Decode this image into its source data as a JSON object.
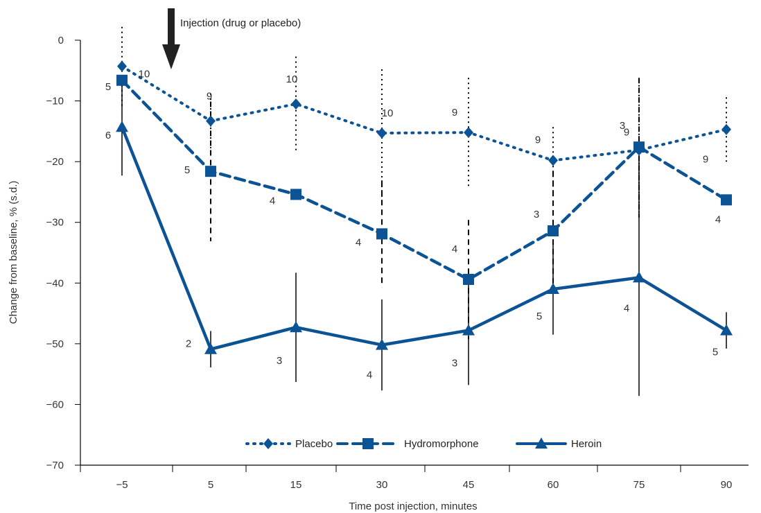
{
  "chart_data": {
    "type": "line",
    "xlabel": "Time post injection, minutes",
    "ylabel": "Change from baseline, % (s.d.)",
    "categories": [
      "−5",
      "5",
      "15",
      "30",
      "45",
      "60",
      "75",
      "90"
    ],
    "ylim": [
      -70,
      0
    ],
    "y_ticks": [
      {
        "value": 0,
        "label": "0"
      },
      {
        "value": -10,
        "label": "−10"
      },
      {
        "value": -20,
        "label": "−20"
      },
      {
        "value": -30,
        "label": "−30"
      },
      {
        "value": -40,
        "label": "−40"
      },
      {
        "value": -50,
        "label": "−50"
      },
      {
        "value": -60,
        "label": "−60"
      },
      {
        "value": -70,
        "label": "−70"
      }
    ],
    "grid": false,
    "legend_position": "bottom",
    "annotation": {
      "text": "Injection (drug or placebo)",
      "between_categories": [
        "−5",
        "5"
      ]
    },
    "series": [
      {
        "name": "Placebo",
        "line_style": "dotted",
        "marker": "diamond",
        "color": "#0b5394",
        "values": [
          -4.3,
          -13.3,
          -10.5,
          -15.3,
          -15.2,
          -19.8,
          -18.1,
          -14.7
        ],
        "sd": [
          6.5,
          4.5,
          7.8,
          10.5,
          9.0,
          5.5,
          11.5,
          5.3
        ],
        "n": [
          "10",
          "9",
          "10",
          "10",
          "9",
          "9",
          "9",
          "9"
        ]
      },
      {
        "name": "Hydromorphone",
        "line_style": "dashed",
        "marker": "square",
        "color": "#0b5394",
        "values": [
          -6.6,
          -21.6,
          -25.4,
          -31.9,
          -39.4,
          -31.4,
          -17.6,
          -26.3
        ],
        "sd": [
          0,
          11.5,
          0,
          8.8,
          9.8,
          9.8,
          11.4,
          0
        ],
        "n": [
          "5",
          "5",
          "4",
          "4",
          "4",
          "3",
          "3",
          "4"
        ]
      },
      {
        "name": "Heroin",
        "line_style": "solid",
        "marker": "triangle",
        "color": "#0b5394",
        "values": [
          -14.3,
          -50.9,
          -47.3,
          -50.2,
          -47.8,
          -41.0,
          -39.1,
          -47.8
        ],
        "sd": [
          8.0,
          3.0,
          9.0,
          7.5,
          9.0,
          7.5,
          19.5,
          3.0
        ],
        "n": [
          "6",
          "2",
          "3",
          "4",
          "3",
          "5",
          "4",
          "5"
        ]
      }
    ]
  }
}
